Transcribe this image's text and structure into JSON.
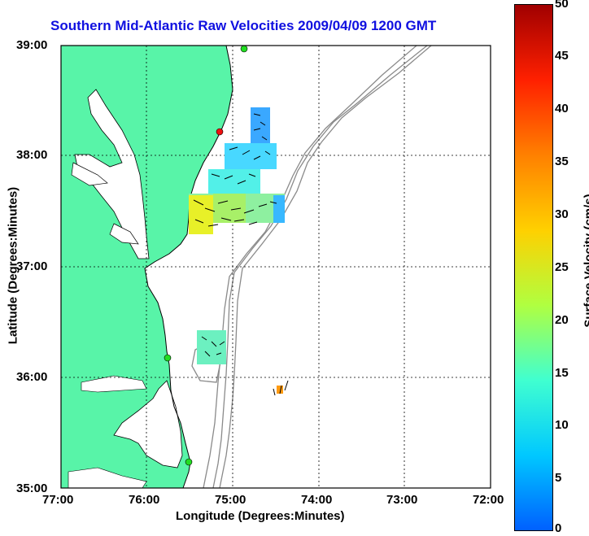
{
  "title": "Southern Mid-Atlantic Raw Velocities 2009/04/09 1200 GMT",
  "x_axis": {
    "label": "Longitude (Degrees:Minutes)",
    "ticks": [
      "77:00",
      "76:00",
      "75:00",
      "74:00",
      "73:00",
      "72:00"
    ]
  },
  "y_axis": {
    "label": "Latitude (Degrees:Minutes)",
    "ticks": [
      "39:00",
      "38:00",
      "37:00",
      "36:00",
      "35:00"
    ]
  },
  "colorbar": {
    "label": "Surface Velocity (cm/s)",
    "ticks": [
      "50",
      "45",
      "40",
      "35",
      "30",
      "25",
      "20",
      "15",
      "10",
      "5",
      "0"
    ],
    "colors": [
      "#0060ff",
      "#00c8ff",
      "#40ffd0",
      "#b0ff40",
      "#ffd000",
      "#ff8000",
      "#ff2000",
      "#a00000"
    ]
  },
  "colors": {
    "land": "#58f4a8",
    "water": "#ffffff",
    "bathymetry": "#8a8a8a",
    "grid": "#000000",
    "title": "#1010e0",
    "station_marker": "#22dd22",
    "station_marker_red": "#ee1111"
  }
}
